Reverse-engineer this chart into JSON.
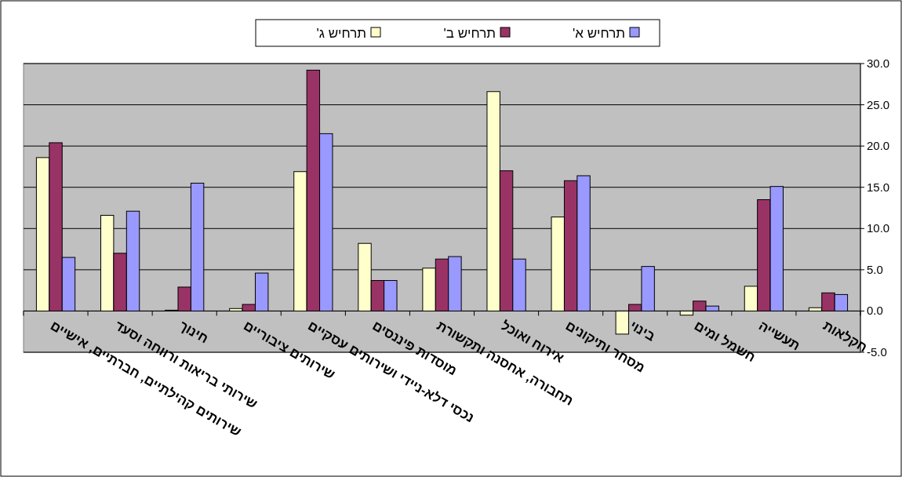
{
  "chart_data": {
    "type": "bar",
    "categories": [
      "שירותים קהילתיים, חברתיים, אישיים",
      "שירותי בריאות ורווחה וסעד",
      "חינוך",
      "שירותים ציבוריים",
      "נכסי דלא-ניידי ושירותים עסקיים",
      "מוסדות פיננסים",
      "תחבורה, אחסנה ותקשורת",
      "אירוח ואוכל",
      "מסחר ותיקונים",
      "בינוי",
      "חשמל ומים",
      "תעשייה",
      "חקלאות"
    ],
    "series": [
      {
        "name": "תרחיש ג'",
        "color": "#ffffcc",
        "values": [
          18.6,
          11.6,
          0.1,
          0.3,
          16.9,
          8.2,
          5.2,
          26.6,
          11.4,
          -2.8,
          -0.5,
          3.0,
          0.4
        ]
      },
      {
        "name": "תרחיש ב'",
        "color": "#993366",
        "values": [
          20.4,
          7.0,
          2.9,
          0.8,
          29.2,
          3.7,
          6.3,
          17.0,
          15.8,
          0.8,
          1.2,
          13.5,
          2.2
        ]
      },
      {
        "name": "תרחיש א'",
        "color": "#9999ff",
        "values": [
          6.5,
          12.1,
          15.5,
          4.6,
          21.5,
          3.7,
          6.6,
          6.3,
          16.4,
          5.4,
          0.6,
          15.1,
          2.0
        ]
      }
    ],
    "ylim": [
      -5,
      30
    ],
    "yticks": [
      {
        "value": -5,
        "label": "-5.0"
      },
      {
        "value": 0,
        "label": "0.0"
      },
      {
        "value": 5,
        "label": "5.0"
      },
      {
        "value": 10,
        "label": "10.0"
      },
      {
        "value": 15,
        "label": "15.0"
      },
      {
        "value": 20,
        "label": "20.0"
      },
      {
        "value": 25,
        "label": "25.0"
      },
      {
        "value": 30,
        "label": "30.0"
      }
    ],
    "grid": "y",
    "legend": "top"
  }
}
